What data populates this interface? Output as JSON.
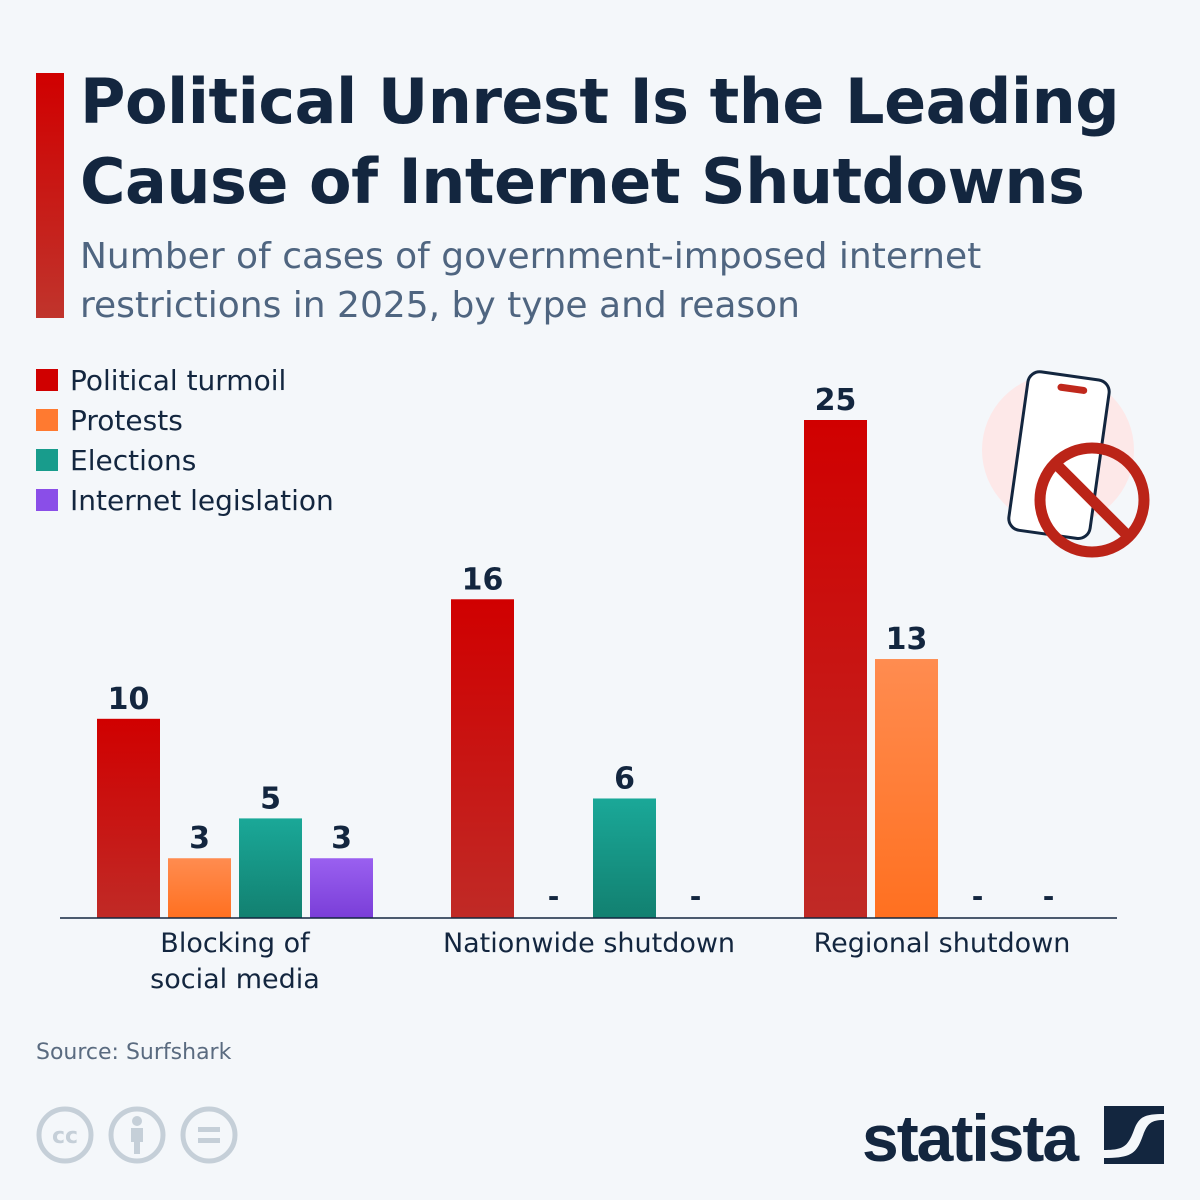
{
  "header": {
    "title": "Political Unrest Is the Leading Cause of Internet Shutdowns",
    "subtitle": "Number of cases of government-imposed internet restrictions in 2025, by type and reason"
  },
  "chart_data": {
    "type": "bar",
    "categories": [
      "Blocking of social media",
      "Nationwide shutdown",
      "Regional shutdown"
    ],
    "series": [
      {
        "name": "Political turmoil",
        "values": [
          10,
          16,
          25
        ],
        "color": "#d00000"
      },
      {
        "name": "Protests",
        "values": [
          3,
          null,
          13
        ],
        "color": "#ff7a30"
      },
      {
        "name": "Elections",
        "values": [
          5,
          6,
          null
        ],
        "color": "#189c8c"
      },
      {
        "name": "Internet legislation",
        "values": [
          3,
          null,
          null
        ],
        "color": "#8a4ee8"
      }
    ],
    "missing_label": "-",
    "legend_position": "top-left",
    "grid": false
  },
  "category_lines": [
    [
      "Blocking of",
      "social media"
    ],
    [
      "Nationwide shutdown"
    ],
    [
      "Regional shutdown"
    ]
  ],
  "footer": {
    "source": "Source: Surfshark",
    "brand": "statista"
  },
  "icons": {
    "illustration": "phone-prohibited-icon",
    "license": [
      "cc-icon",
      "attribution-icon",
      "no-derivatives-icon"
    ]
  }
}
